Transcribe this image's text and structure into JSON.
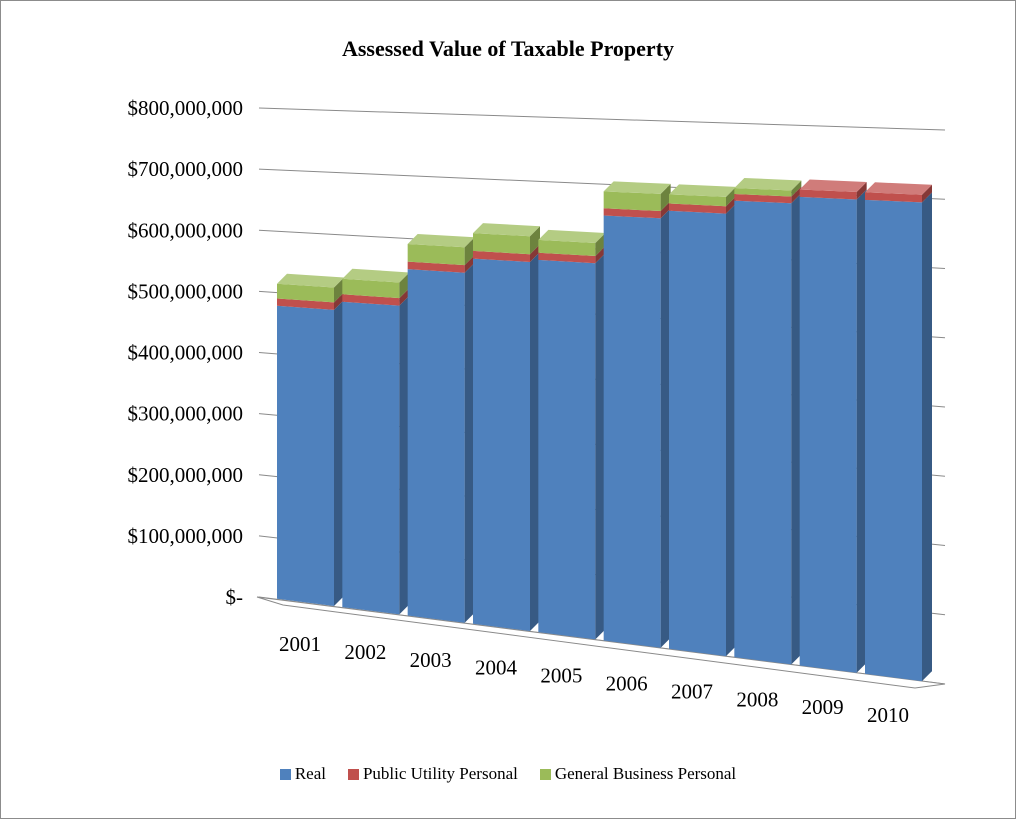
{
  "colors": {
    "real": "#4f81bd",
    "public_utility": "#c0504d",
    "general_business": "#9bbb59"
  },
  "chart_data": {
    "type": "bar",
    "stacked": true,
    "style": "3d-column",
    "title": "Assessed Value of Taxable Property",
    "xlabel": "",
    "ylabel": "",
    "ylim": [
      0,
      800000000
    ],
    "y_ticks": [
      0,
      100000000,
      200000000,
      300000000,
      400000000,
      500000000,
      600000000,
      700000000,
      800000000
    ],
    "y_tick_labels": [
      "$-",
      "$100,000,000",
      "$200,000,000",
      "$300,000,000",
      "$400,000,000",
      "$500,000,000",
      "$600,000,000",
      "$700,000,000",
      "$800,000,000"
    ],
    "categories": [
      "2001",
      "2002",
      "2003",
      "2004",
      "2005",
      "2006",
      "2007",
      "2008",
      "2009",
      "2010"
    ],
    "series": [
      {
        "name": "Real",
        "color": "#4f81bd",
        "values": [
          478000000,
          492000000,
          551000000,
          574000000,
          578000000,
          652000000,
          664000000,
          684000000,
          694000000,
          694000000
        ]
      },
      {
        "name": "Public Utility Personal",
        "color": "#c0504d",
        "values": [
          12000000,
          12000000,
          12000000,
          12000000,
          11000000,
          11000000,
          11000000,
          10000000,
          11000000,
          11000000
        ]
      },
      {
        "name": "General Business Personal",
        "color": "#9bbb59",
        "values": [
          24000000,
          25000000,
          28000000,
          28000000,
          20000000,
          26000000,
          14000000,
          9000000,
          0,
          0
        ]
      }
    ],
    "grid": true,
    "legend_position": "bottom"
  }
}
